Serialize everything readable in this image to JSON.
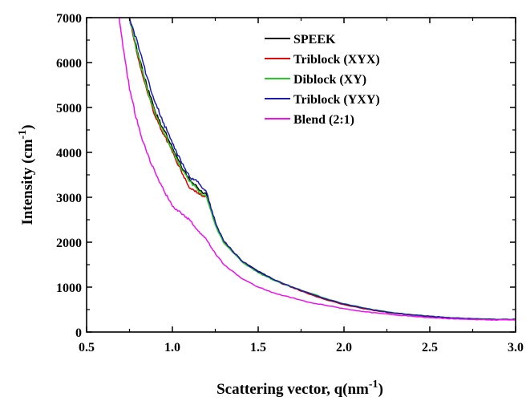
{
  "chart_data": {
    "type": "line",
    "title": "",
    "xlabel": "Scattering vector, q(nm",
    "xlabel_sup": "-1",
    "xlabel_suffix": ")",
    "ylabel": "Intensity (cm",
    "ylabel_sup": "-1",
    "ylabel_suffix": ")",
    "xlim": [
      0.5,
      3.0
    ],
    "ylim": [
      0,
      7000
    ],
    "x_ticks": [
      "0.5",
      "1.0",
      "1.5",
      "2.0",
      "2.5",
      "3.0"
    ],
    "y_ticks": [
      "0",
      "1000",
      "2000",
      "3000",
      "4000",
      "5000",
      "6000",
      "7000"
    ],
    "grid": false,
    "legend_position": "top-right",
    "series": [
      {
        "name": "SPEEK",
        "color": "#000000",
        "x": [
          0.75,
          0.8,
          0.85,
          0.9,
          0.95,
          1.0,
          1.05,
          1.1,
          1.15,
          1.2,
          1.25,
          1.3,
          1.4,
          1.5,
          1.6,
          1.7,
          1.8,
          1.9,
          2.0,
          2.1,
          2.2,
          2.3,
          2.4,
          2.5,
          2.6,
          2.7,
          2.8,
          2.9,
          3.0
        ],
        "y": [
          7000,
          6200,
          5500,
          4900,
          4500,
          4100,
          3700,
          3400,
          3200,
          3050,
          2400,
          2000,
          1600,
          1350,
          1150,
          1000,
          850,
          720,
          620,
          540,
          470,
          420,
          380,
          350,
          320,
          300,
          290,
          280,
          280
        ]
      },
      {
        "name": "Triblock (XYX)",
        "color": "#e00000",
        "x": [
          0.75,
          0.8,
          0.85,
          0.9,
          0.95,
          1.0,
          1.05,
          1.1,
          1.15,
          1.2,
          1.25,
          1.3,
          1.4,
          1.5,
          1.6,
          1.7,
          1.8,
          1.9,
          2.0,
          2.1,
          2.2,
          2.3,
          2.4,
          2.5,
          2.6,
          2.7,
          2.8,
          2.9,
          3.0
        ],
        "y": [
          7000,
          6100,
          5400,
          4800,
          4400,
          4000,
          3600,
          3200,
          3100,
          3000,
          2400,
          2000,
          1600,
          1330,
          1140,
          990,
          840,
          710,
          610,
          530,
          465,
          415,
          375,
          345,
          318,
          300,
          288,
          280,
          280
        ]
      },
      {
        "name": "Diblock (XY)",
        "color": "#22cc22",
        "x": [
          0.75,
          0.8,
          0.85,
          0.9,
          0.95,
          1.0,
          1.05,
          1.1,
          1.15,
          1.2,
          1.25,
          1.3,
          1.4,
          1.5,
          1.6,
          1.7,
          1.8,
          1.9,
          2.0,
          2.1,
          2.2,
          2.3,
          2.4,
          2.5,
          2.6,
          2.7,
          2.8,
          2.9,
          3.0
        ],
        "y": [
          7000,
          6150,
          5450,
          4850,
          4450,
          4050,
          3650,
          3350,
          3150,
          3000,
          2380,
          1980,
          1580,
          1320,
          1140,
          1000,
          870,
          740,
          630,
          550,
          480,
          425,
          385,
          355,
          325,
          305,
          292,
          282,
          280
        ]
      },
      {
        "name": "Triblock (YXY)",
        "color": "#1a1ab0",
        "x": [
          0.75,
          0.8,
          0.85,
          0.9,
          0.95,
          1.0,
          1.05,
          1.1,
          1.15,
          1.2,
          1.25,
          1.3,
          1.4,
          1.5,
          1.6,
          1.7,
          1.8,
          1.9,
          2.0,
          2.1,
          2.2,
          2.3,
          2.4,
          2.5,
          2.6,
          2.7,
          2.8,
          2.9,
          3.0
        ],
        "y": [
          7000,
          6400,
          5700,
          5100,
          4650,
          4200,
          3800,
          3450,
          3350,
          3100,
          2450,
          2020,
          1600,
          1340,
          1150,
          1000,
          860,
          730,
          625,
          545,
          475,
          420,
          380,
          350,
          322,
          302,
          290,
          280,
          280
        ]
      },
      {
        "name": "Blend (2:1)",
        "color": "#ee11ee",
        "x": [
          0.69,
          0.7,
          0.75,
          0.8,
          0.85,
          0.9,
          0.95,
          1.0,
          1.05,
          1.1,
          1.15,
          1.2,
          1.25,
          1.3,
          1.4,
          1.5,
          1.6,
          1.7,
          1.8,
          1.9,
          2.0,
          2.1,
          2.2,
          2.3,
          2.4,
          2.5,
          2.6,
          2.7,
          2.8,
          2.9,
          3.0
        ],
        "y": [
          7000,
          6700,
          5400,
          4600,
          4000,
          3550,
          3150,
          2800,
          2650,
          2500,
          2250,
          2050,
          1750,
          1500,
          1200,
          1000,
          860,
          760,
          660,
          590,
          520,
          460,
          420,
          380,
          350,
          320,
          300,
          285,
          275,
          270,
          270
        ]
      }
    ]
  }
}
